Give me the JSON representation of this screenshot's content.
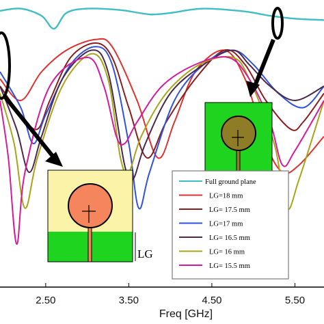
{
  "chart_data": {
    "type": "line",
    "xlabel": "Freq [GHz]",
    "ylabel": "",
    "title": "",
    "xlim": [
      1.95,
      5.85
    ],
    "ylim": [
      -40,
      0
    ],
    "x_ticks": [
      "2.50",
      "3.50",
      "4.50",
      "5.50"
    ],
    "grid": false,
    "legend_position": "bottom-right",
    "series": [
      {
        "name": "Full ground plane",
        "color": "#3fbcc4",
        "points": [
          [
            1.95,
            -1.5
          ],
          [
            2.2,
            -1.2
          ],
          [
            2.45,
            -2.2
          ],
          [
            2.6,
            -4.0
          ],
          [
            2.75,
            -1.8
          ],
          [
            3.0,
            -1.2
          ],
          [
            3.4,
            -1.4
          ],
          [
            3.75,
            -2.0
          ],
          [
            4.0,
            -1.8
          ],
          [
            4.4,
            -1.2
          ],
          [
            4.9,
            -1.6
          ],
          [
            5.2,
            -2.2
          ],
          [
            5.5,
            -2.6
          ],
          [
            5.85,
            -2.8
          ]
        ]
      },
      {
        "name": "LG=18 mm",
        "color": "#e03030",
        "points": [
          [
            1.95,
            -11
          ],
          [
            2.2,
            -14
          ],
          [
            2.45,
            -10
          ],
          [
            2.75,
            -7
          ],
          [
            3.1,
            -5.5
          ],
          [
            3.3,
            -6.5
          ],
          [
            3.6,
            -14
          ],
          [
            3.85,
            -22
          ],
          [
            4.05,
            -17
          ],
          [
            4.3,
            -10
          ],
          [
            4.65,
            -7
          ],
          [
            4.9,
            -11
          ],
          [
            5.15,
            -20
          ],
          [
            5.35,
            -24
          ],
          [
            5.55,
            -23
          ],
          [
            5.85,
            -19
          ]
        ]
      },
      {
        "name": "LG= 17.5 mm",
        "color": "#8a1e1e",
        "points": [
          [
            1.95,
            -12
          ],
          [
            2.2,
            -16
          ],
          [
            2.4,
            -18
          ],
          [
            2.55,
            -14
          ],
          [
            2.8,
            -8
          ],
          [
            3.1,
            -6
          ],
          [
            3.3,
            -8
          ],
          [
            3.5,
            -15
          ],
          [
            3.72,
            -22
          ],
          [
            3.95,
            -17
          ],
          [
            4.3,
            -11
          ],
          [
            4.65,
            -7
          ],
          [
            4.9,
            -9
          ],
          [
            5.15,
            -14
          ],
          [
            5.45,
            -18
          ],
          [
            5.6,
            -17
          ],
          [
            5.85,
            -13
          ]
        ]
      },
      {
        "name": "LG=17 mm",
        "color": "#3050e0",
        "points": [
          [
            1.95,
            -10
          ],
          [
            2.2,
            -15
          ],
          [
            2.35,
            -20
          ],
          [
            2.5,
            -16
          ],
          [
            2.8,
            -9
          ],
          [
            3.1,
            -6.5
          ],
          [
            3.3,
            -9
          ],
          [
            3.5,
            -20
          ],
          [
            3.62,
            -29
          ],
          [
            3.75,
            -24
          ],
          [
            4.05,
            -14
          ],
          [
            4.4,
            -9
          ],
          [
            4.75,
            -7
          ],
          [
            5.0,
            -9
          ],
          [
            5.3,
            -13
          ],
          [
            5.6,
            -15
          ],
          [
            5.85,
            -12
          ]
        ]
      },
      {
        "name": "LG= 16.5 mm",
        "color": "#4a2848",
        "points": [
          [
            1.95,
            -12
          ],
          [
            2.15,
            -18
          ],
          [
            2.3,
            -24
          ],
          [
            2.45,
            -19
          ],
          [
            2.7,
            -11
          ],
          [
            3.05,
            -7
          ],
          [
            3.25,
            -10
          ],
          [
            3.45,
            -23
          ],
          [
            3.55,
            -25
          ],
          [
            3.7,
            -20
          ],
          [
            4.0,
            -13
          ],
          [
            4.4,
            -9
          ],
          [
            4.75,
            -7
          ],
          [
            4.95,
            -9
          ],
          [
            5.2,
            -12
          ],
          [
            5.5,
            -14
          ],
          [
            5.85,
            -12
          ]
        ]
      },
      {
        "name": "LG= 16 mm",
        "color": "#a8a418",
        "points": [
          [
            1.95,
            -13
          ],
          [
            2.12,
            -20
          ],
          [
            2.25,
            -29
          ],
          [
            2.4,
            -22
          ],
          [
            2.7,
            -12
          ],
          [
            3.05,
            -7.5
          ],
          [
            3.25,
            -11
          ],
          [
            3.4,
            -22
          ],
          [
            3.5,
            -24
          ],
          [
            3.65,
            -19
          ],
          [
            3.95,
            -13
          ],
          [
            4.35,
            -9
          ],
          [
            4.75,
            -8
          ],
          [
            4.95,
            -11
          ],
          [
            5.25,
            -20
          ],
          [
            5.4,
            -29
          ],
          [
            5.55,
            -25
          ],
          [
            5.85,
            -14
          ]
        ]
      },
      {
        "name": "LG= 15.5 mm",
        "color": "#d51a9c",
        "points": [
          [
            1.95,
            -14
          ],
          [
            2.05,
            -22
          ],
          [
            2.15,
            -34
          ],
          [
            2.25,
            -24
          ],
          [
            2.55,
            -12
          ],
          [
            3.0,
            -8
          ],
          [
            3.2,
            -12
          ],
          [
            3.35,
            -19
          ],
          [
            3.45,
            -20
          ],
          [
            3.6,
            -17
          ],
          [
            3.9,
            -12
          ],
          [
            4.3,
            -9
          ],
          [
            4.7,
            -8
          ],
          [
            4.95,
            -11
          ],
          [
            5.2,
            -17
          ],
          [
            5.35,
            -23
          ],
          [
            5.5,
            -21
          ],
          [
            5.85,
            -14
          ]
        ]
      }
    ]
  },
  "inset_annotation": "LG",
  "icons": {
    "circle_marker_left": "ellipse-marker",
    "circle_marker_right": "ellipse-marker",
    "inset_left": "antenna-partial-ground",
    "inset_right": "antenna-full-ground"
  },
  "colors": {
    "ground_green": "#1fd41f",
    "substrate_yellow": "#fbf3a8",
    "patch_orange": "#f4855d",
    "patch_olive": "#8f7c26",
    "legend_box": "#7a7a7a"
  }
}
